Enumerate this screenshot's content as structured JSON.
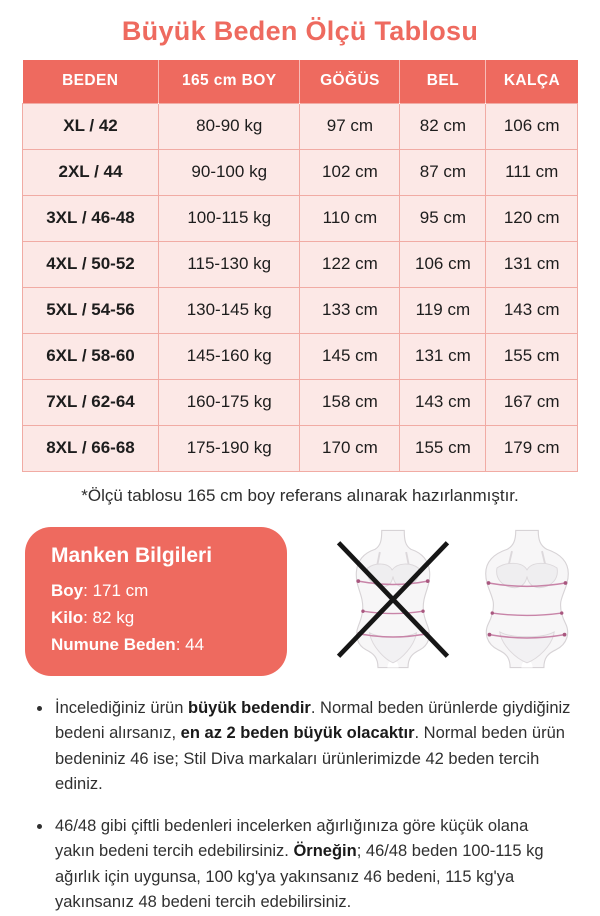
{
  "title": "Büyük Beden Ölçü Tablosu",
  "table": {
    "headers": [
      "BEDEN",
      "165 cm BOY",
      "GÖĞÜS",
      "BEL",
      "KALÇA"
    ],
    "rows": [
      [
        "XL / 42",
        "80-90 kg",
        "97 cm",
        "82 cm",
        "106 cm"
      ],
      [
        "2XL / 44",
        "90-100 kg",
        "102 cm",
        "87 cm",
        "111 cm"
      ],
      [
        "3XL / 46-48",
        "100-115 kg",
        "110 cm",
        "95 cm",
        "120 cm"
      ],
      [
        "4XL / 50-52",
        "115-130 kg",
        "122 cm",
        "106 cm",
        "131 cm"
      ],
      [
        "5XL / 54-56",
        "130-145 kg",
        "133 cm",
        "119 cm",
        "143 cm"
      ],
      [
        "6XL / 58-60",
        "145-160 kg",
        "145 cm",
        "131 cm",
        "155 cm"
      ],
      [
        "7XL / 62-64",
        "160-175 kg",
        "158 cm",
        "143 cm",
        "167 cm"
      ],
      [
        "8XL / 66-68",
        "175-190 kg",
        "170 cm",
        "155 cm",
        "179 cm"
      ]
    ]
  },
  "footnote": "*Ölçü tablosu 165 cm boy referans alınarak hazırlanmıştır.",
  "model_info": {
    "title": "Manken Bilgileri",
    "rows": [
      {
        "label": "Boy",
        "value": ": 171 cm"
      },
      {
        "label": "Kilo",
        "value": ": 82 kg"
      },
      {
        "label": "Numune Beden",
        "value": ": 44"
      }
    ]
  },
  "icons": {
    "wrong_fit": "crossed-out-slim-figure-icon",
    "right_fit": "plus-size-figure-icon"
  },
  "notes": [
    {
      "segments": [
        {
          "text": "İncelediğiniz ürün ",
          "bold": false
        },
        {
          "text": "büyük bedendir",
          "bold": true
        },
        {
          "text": ". Normal beden ürünlerde giydiğiniz bedeni alırsanız, ",
          "bold": false
        },
        {
          "text": "en az 2 beden büyük olacaktır",
          "bold": true
        },
        {
          "text": ". Normal beden ürün bedeniniz 46 ise; Stil Diva markaları ürünlerimizde 42 beden tercih ediniz.",
          "bold": false
        }
      ]
    },
    {
      "segments": [
        {
          "text": "46/48 gibi çiftli bedenleri incelerken ağırlığınıza göre küçük olana yakın bedeni tercih edebilirsiniz. ",
          "bold": false
        },
        {
          "text": "Örneğin",
          "bold": true
        },
        {
          "text": "; 46/48 beden 100-115 kg ağırlık için uygunsa, 100 kg'ya yakınsanız 46 bedeni, 115 kg'ya yakınsanız 48 bedeni tercih edebilirsiniz.",
          "bold": false
        }
      ]
    }
  ],
  "colors": {
    "accent": "#ee6a5f",
    "row_background": "#fce8e6",
    "cell_border": "#f1aba4",
    "measure_line": "#c884a8",
    "text": "#1d1d1d"
  }
}
